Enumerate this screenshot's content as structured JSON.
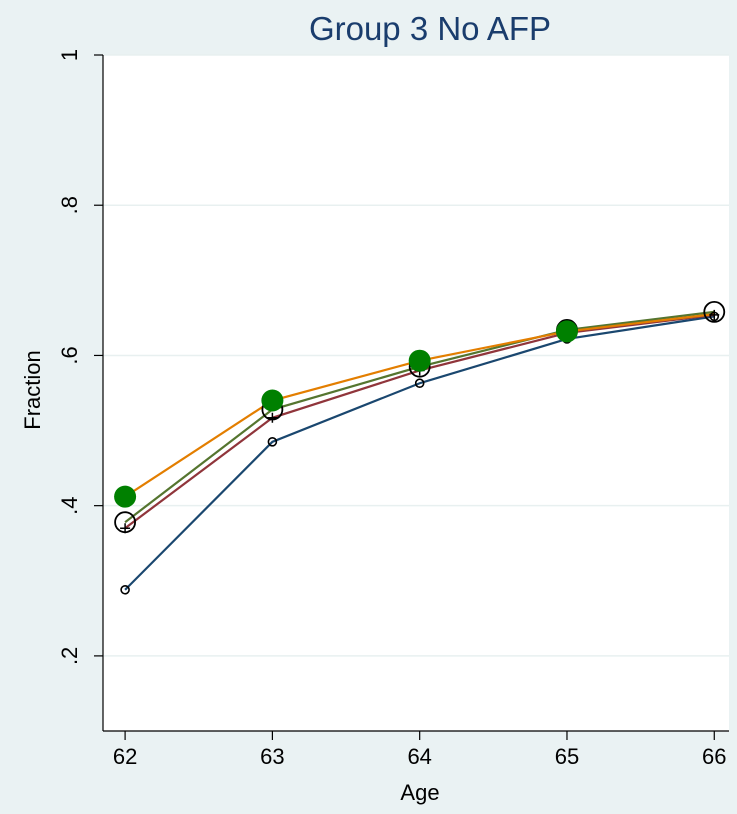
{
  "chart_data": {
    "type": "line",
    "title": "Group 3 No AFP",
    "xlabel": "Age",
    "ylabel": "Fraction",
    "x": [
      62,
      63,
      64,
      65,
      66
    ],
    "x_tick_labels": [
      "62",
      "63",
      "64",
      "65",
      "66"
    ],
    "ylim": [
      0.1,
      1.0
    ],
    "xlim": [
      61.85,
      66.1
    ],
    "y_ticks": [
      0.2,
      0.4,
      0.6,
      0.8,
      1.0
    ],
    "y_tick_labels": [
      ".2",
      ".4",
      ".6",
      ".8",
      "1"
    ],
    "grid": true,
    "legend": "none",
    "colors": {
      "background": "#eaf2f3",
      "plot_background": "#ffffff",
      "grid": "#e8f0f0",
      "title": "#1a3d6d"
    },
    "series": [
      {
        "values": [
          0.288,
          0.485,
          0.563,
          0.622,
          0.652
        ],
        "color": "#1a476f",
        "marker": "small-hollow-circle"
      },
      {
        "values": [
          0.37,
          0.517,
          0.58,
          0.63,
          0.654
        ],
        "color": "#90353b",
        "marker": "plus"
      },
      {
        "values": [
          0.378,
          0.528,
          0.585,
          0.634,
          0.658
        ],
        "color": "#55752f",
        "marker": "large-hollow-circle"
      },
      {
        "values": [
          0.412,
          0.54,
          0.593,
          0.632,
          0.655
        ],
        "color": "#e37e00",
        "marker": "none"
      },
      {
        "values": [
          0.412,
          0.54,
          0.593,
          0.632,
          null
        ],
        "color": "#008000",
        "marker": "solid-dot",
        "line": false
      }
    ]
  }
}
